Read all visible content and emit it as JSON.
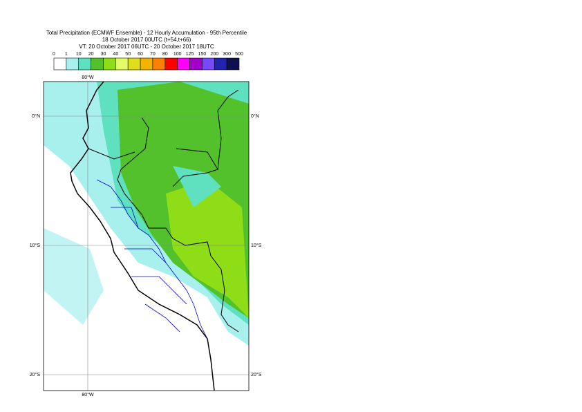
{
  "title": {
    "lines": [
      "Total Precipitation (ECMWF Ensemble) - 12 Hourly Accumulation - 95th Percentile",
      "18 October 2017 00UTC (t+54,t+66)",
      "VT: 20 October 2017 06UTC - 20 October 2017 18UTC"
    ]
  },
  "legend": {
    "levels": [
      0,
      1,
      10,
      20,
      30,
      40,
      50,
      60,
      70,
      80,
      100,
      125,
      150,
      200,
      300,
      500
    ],
    "colors": [
      "#ffffff",
      "#a8f0ee",
      "#5fe0be",
      "#52c12c",
      "#8fdd16",
      "#e2fb66",
      "#dede1e",
      "#f2b400",
      "#ff8000",
      "#ff0000",
      "#ff00ff",
      "#a000c8",
      "#7848ff",
      "#2222b0",
      "#10104e"
    ]
  },
  "map": {
    "lon_labels": [
      "80°W"
    ],
    "lat_labels": [
      "0°N",
      "10°S",
      "20°S"
    ]
  }
}
